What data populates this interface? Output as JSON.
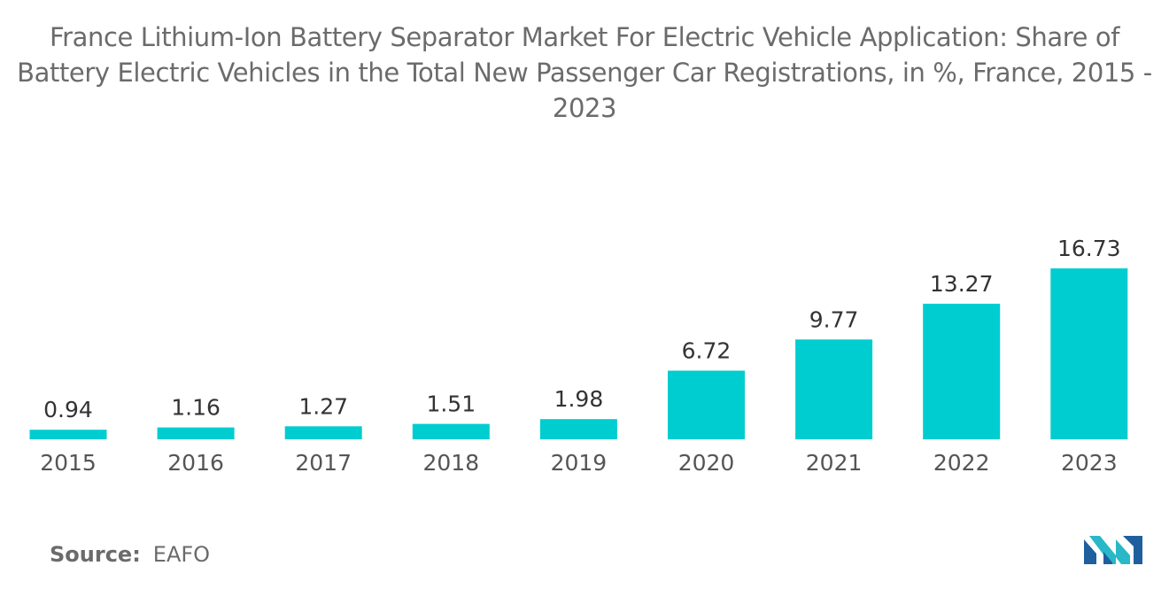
{
  "chart_data": {
    "type": "bar",
    "title": "France Lithium-Ion Battery Separator Market For Electric Vehicle Application: Share of Battery Electric Vehicles in the Total New Passenger Car Registrations, in %, France, 2015 - 2023",
    "categories": [
      "2015",
      "2016",
      "2017",
      "2018",
      "2019",
      "2020",
      "2021",
      "2022",
      "2023"
    ],
    "values": [
      0.94,
      1.16,
      1.27,
      1.51,
      1.98,
      6.72,
      9.77,
      13.27,
      16.73
    ],
    "value_labels": [
      "0.94",
      "1.16",
      "1.27",
      "1.51",
      "1.98",
      "6.72",
      "9.77",
      "13.27",
      "16.73"
    ],
    "xlabel": "",
    "ylabel": "",
    "ylim": [
      0,
      16.73
    ],
    "grid": false,
    "bar_color": "#00cdd0"
  },
  "source": {
    "label": "Source:",
    "value": "EAFO"
  },
  "logo": {
    "icon": "mordor-logo-icon",
    "color_dark": "#1f5f9e",
    "color_light": "#29b8c8"
  }
}
